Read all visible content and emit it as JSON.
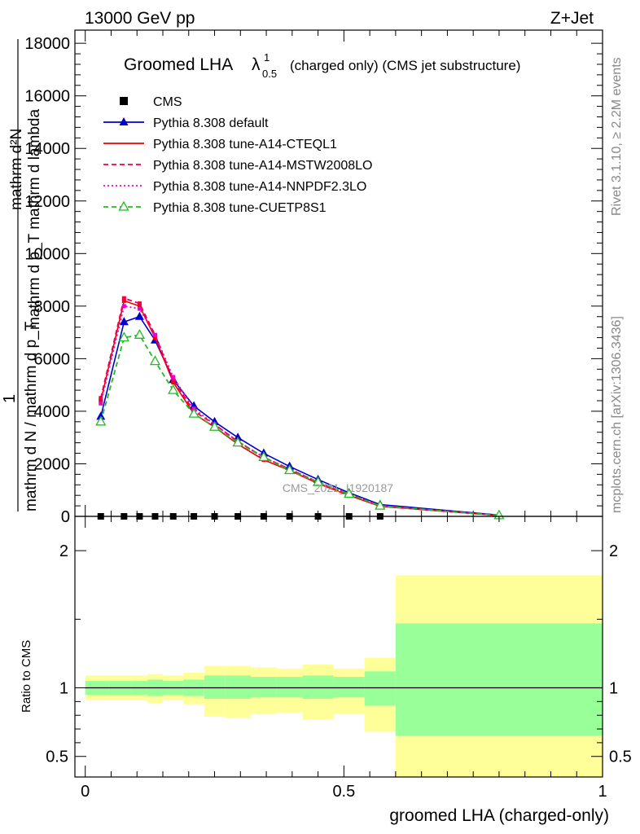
{
  "header": {
    "left": "13000 GeV pp",
    "right": "Z+Jet"
  },
  "title": {
    "main": "Groomed LHA",
    "lambda": "λ",
    "sup": "1",
    "sub": "0.5",
    "rest": "(charged only) (CMS jet substructure)"
  },
  "side_labels": {
    "rivet": "Rivet 3.1.10, ≥ 2.2M events",
    "mcplots": "mcplots.cern.ch [arXiv:1306.3436]"
  },
  "watermark": "CMS_2021_I1920187",
  "ylabel_main": {
    "numer_top": "mathrm d²N",
    "numer_bottom": "mathrm d p_T mathrm d lambda",
    "one": "1",
    "denom": "mathrm d N / mathrm d p_T"
  },
  "ylabel_ratio": "Ratio to CMS",
  "xlabel": "groomed LHA (charged-only)",
  "chart_data": [
    {
      "type": "line",
      "panel": "main",
      "xlim": [
        -0.02,
        1.0
      ],
      "ylim": [
        0,
        18500
      ],
      "yticks": [
        0,
        2000,
        4000,
        6000,
        8000,
        10000,
        12000,
        14000,
        16000,
        18000
      ],
      "ytick_labels": [
        "0",
        "2000",
        "4000",
        "6000",
        "8000",
        "10000",
        "12000",
        "14000",
        "16000",
        "18000"
      ],
      "legend_position": "top-left",
      "series": [
        {
          "name": "CMS",
          "color": "#000000",
          "marker": "square",
          "style": "none",
          "x": [
            0.03,
            0.075,
            0.105,
            0.135,
            0.17,
            0.21,
            0.25,
            0.295,
            0.345,
            0.395,
            0.45,
            0.51,
            0.57
          ],
          "y": [
            0,
            0,
            0,
            0,
            0,
            0,
            0,
            0,
            0,
            0,
            0,
            0,
            0
          ]
        },
        {
          "name": "Pythia 8.308 default",
          "color": "#0000cc",
          "marker": "triangle",
          "style": "solid",
          "x": [
            0.03,
            0.075,
            0.105,
            0.135,
            0.17,
            0.21,
            0.25,
            0.295,
            0.345,
            0.395,
            0.45,
            0.51,
            0.57,
            0.8
          ],
          "y": [
            3800,
            7400,
            7600,
            6700,
            5200,
            4200,
            3600,
            3000,
            2400,
            1900,
            1400,
            900,
            450,
            50
          ]
        },
        {
          "name": "Pythia 8.308 tune-A14-CTEQL1",
          "color": "#ee0000",
          "marker": "none",
          "style": "solid",
          "x": [
            0.03,
            0.075,
            0.105,
            0.135,
            0.17,
            0.21,
            0.25,
            0.295,
            0.345,
            0.395,
            0.45,
            0.51,
            0.57,
            0.8
          ],
          "y": [
            4400,
            8200,
            8000,
            6800,
            5100,
            3900,
            3400,
            2750,
            2150,
            1750,
            1250,
            800,
            380,
            30
          ]
        },
        {
          "name": "Pythia 8.308 tune-A14-MSTW2008LO",
          "color": "#ee0044",
          "marker": "none",
          "style": "dashed",
          "x": [
            0.03,
            0.075,
            0.105,
            0.135,
            0.17,
            0.21,
            0.25,
            0.295,
            0.345,
            0.395,
            0.45,
            0.51,
            0.57,
            0.8
          ],
          "y": [
            4500,
            8300,
            8100,
            6900,
            5200,
            4000,
            3500,
            2850,
            2250,
            1800,
            1300,
            850,
            400,
            35
          ]
        },
        {
          "name": "Pythia 8.308 tune-A14-NNPDF2.3LO",
          "color": "#ee00cc",
          "marker": "none",
          "style": "dotted",
          "x": [
            0.03,
            0.075,
            0.105,
            0.135,
            0.17,
            0.21,
            0.25,
            0.295,
            0.345,
            0.395,
            0.45,
            0.51,
            0.57,
            0.8
          ],
          "y": [
            4300,
            8000,
            7900,
            6900,
            5300,
            4100,
            3500,
            2850,
            2250,
            1800,
            1300,
            850,
            400,
            35
          ]
        },
        {
          "name": "Pythia 8.308 tune-CUETP8S1",
          "color": "#22bb22",
          "marker": "open-triangle",
          "style": "dashed",
          "x": [
            0.03,
            0.075,
            0.105,
            0.135,
            0.17,
            0.21,
            0.25,
            0.295,
            0.345,
            0.395,
            0.45,
            0.51,
            0.57,
            0.8
          ],
          "y": [
            3600,
            6800,
            6900,
            5900,
            4800,
            3900,
            3400,
            2800,
            2250,
            1750,
            1300,
            850,
            400,
            35
          ]
        }
      ]
    },
    {
      "type": "area",
      "panel": "ratio",
      "xlim": [
        -0.02,
        1.0
      ],
      "ylim": [
        0.35,
        2.25
      ],
      "yticks": [
        0.5,
        1,
        2
      ],
      "ytick_labels": [
        "0.5",
        "1",
        "2"
      ],
      "xticks": [
        0,
        0.5,
        1
      ],
      "xtick_labels": [
        "0",
        "0.5",
        "1"
      ],
      "reference_line": 1,
      "bins": [
        {
          "lo": 0.0,
          "hi": 0.045,
          "stat_lo": 0.95,
          "stat_hi": 1.05,
          "tot_lo": 0.91,
          "tot_hi": 1.09
        },
        {
          "lo": 0.045,
          "hi": 0.09,
          "stat_lo": 0.95,
          "stat_hi": 1.05,
          "tot_lo": 0.91,
          "tot_hi": 1.09
        },
        {
          "lo": 0.09,
          "hi": 0.12,
          "stat_lo": 0.95,
          "stat_hi": 1.05,
          "tot_lo": 0.91,
          "tot_hi": 1.09
        },
        {
          "lo": 0.12,
          "hi": 0.15,
          "stat_lo": 0.94,
          "stat_hi": 1.06,
          "tot_lo": 0.89,
          "tot_hi": 1.1
        },
        {
          "lo": 0.15,
          "hi": 0.19,
          "stat_lo": 0.95,
          "stat_hi": 1.05,
          "tot_lo": 0.91,
          "tot_hi": 1.09
        },
        {
          "lo": 0.19,
          "hi": 0.23,
          "stat_lo": 0.94,
          "stat_hi": 1.06,
          "tot_lo": 0.88,
          "tot_hi": 1.11
        },
        {
          "lo": 0.23,
          "hi": 0.27,
          "stat_lo": 0.92,
          "stat_hi": 1.09,
          "tot_lo": 0.79,
          "tot_hi": 1.16
        },
        {
          "lo": 0.27,
          "hi": 0.32,
          "stat_lo": 0.92,
          "stat_hi": 1.09,
          "tot_lo": 0.78,
          "tot_hi": 1.16
        },
        {
          "lo": 0.32,
          "hi": 0.37,
          "stat_lo": 0.93,
          "stat_hi": 1.08,
          "tot_lo": 0.81,
          "tot_hi": 1.15
        },
        {
          "lo": 0.37,
          "hi": 0.42,
          "stat_lo": 0.93,
          "stat_hi": 1.08,
          "tot_lo": 0.82,
          "tot_hi": 1.14
        },
        {
          "lo": 0.42,
          "hi": 0.48,
          "stat_lo": 0.92,
          "stat_hi": 1.09,
          "tot_lo": 0.77,
          "tot_hi": 1.17
        },
        {
          "lo": 0.48,
          "hi": 0.54,
          "stat_lo": 0.93,
          "stat_hi": 1.08,
          "tot_lo": 0.81,
          "tot_hi": 1.14
        },
        {
          "lo": 0.54,
          "hi": 0.6,
          "stat_lo": 0.87,
          "stat_hi": 1.12,
          "tot_lo": 0.68,
          "tot_hi": 1.22
        },
        {
          "lo": 0.6,
          "hi": 1.0,
          "stat_lo": 0.65,
          "stat_hi": 1.47,
          "tot_lo": 0.35,
          "tot_hi": 1.82
        }
      ],
      "band_colors": {
        "stat": "#99ff99",
        "total": "#ffff99"
      }
    }
  ]
}
